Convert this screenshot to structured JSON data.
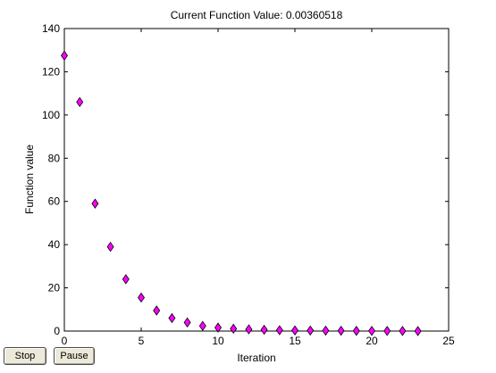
{
  "chart_data": {
    "type": "scatter",
    "title": "Current Function Value: 0.00360518",
    "xlabel": "Iteration",
    "ylabel": "Function value",
    "xlim": [
      0,
      25
    ],
    "ylim": [
      0,
      140
    ],
    "xticks": [
      0,
      5,
      10,
      15,
      20,
      25
    ],
    "yticks": [
      0,
      20,
      40,
      60,
      80,
      100,
      120,
      140
    ],
    "grid": false,
    "marker": "diamond",
    "marker_color": "#ff00ff",
    "series": [
      {
        "x": [
          0,
          1,
          2,
          3,
          4,
          5,
          6,
          7,
          8,
          9,
          10,
          11,
          12,
          13,
          14,
          15,
          16,
          17,
          18,
          19,
          20,
          21,
          22,
          23
        ],
        "values": [
          127.5,
          106,
          59,
          39,
          24,
          15.5,
          9.5,
          6,
          4,
          2.4,
          1.6,
          1.1,
          0.8,
          0.6,
          0.4,
          0.3,
          0.25,
          0.2,
          0.15,
          0.1,
          0.08,
          0.06,
          0.05,
          0.0036
        ]
      }
    ]
  },
  "controls": {
    "stop_label": "Stop",
    "pause_label": "Pause"
  }
}
